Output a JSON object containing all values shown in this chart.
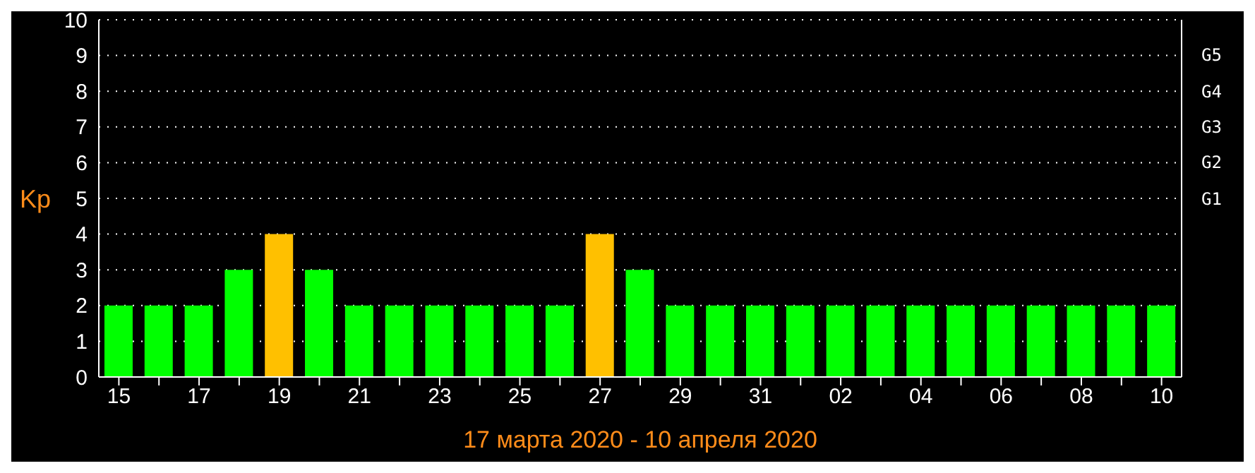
{
  "chart_data": {
    "type": "bar",
    "xlabel": "17 марта 2020 - 10 апреля 2020",
    "ylabel": "Kp",
    "categories": [
      "15",
      null,
      "17",
      null,
      "19",
      null,
      "21",
      null,
      "23",
      null,
      "25",
      null,
      "27",
      null,
      "29",
      null,
      "31",
      null,
      "02",
      null,
      "04",
      null,
      "06",
      null,
      "08",
      null,
      "10"
    ],
    "values": [
      2,
      2,
      2,
      3,
      4,
      3,
      2,
      2,
      2,
      2,
      2,
      2,
      4,
      3,
      2,
      2,
      2,
      2,
      2,
      2,
      2,
      2,
      2,
      2,
      2,
      2,
      2
    ],
    "colors": [
      "#00ff00",
      "#00ff00",
      "#00ff00",
      "#00ff00",
      "#ffc000",
      "#00ff00",
      "#00ff00",
      "#00ff00",
      "#00ff00",
      "#00ff00",
      "#00ff00",
      "#00ff00",
      "#ffc000",
      "#00ff00",
      "#00ff00",
      "#00ff00",
      "#00ff00",
      "#00ff00",
      "#00ff00",
      "#00ff00",
      "#00ff00",
      "#00ff00",
      "#00ff00",
      "#00ff00",
      "#00ff00",
      "#00ff00",
      "#00ff00"
    ],
    "ylim": [
      0,
      10
    ],
    "yticks": [
      0,
      1,
      2,
      3,
      4,
      5,
      6,
      7,
      8,
      9,
      10
    ],
    "annotations": [
      "G5",
      "G4",
      "G3",
      "G2",
      "G1"
    ],
    "grid": "y",
    "legend": false
  }
}
